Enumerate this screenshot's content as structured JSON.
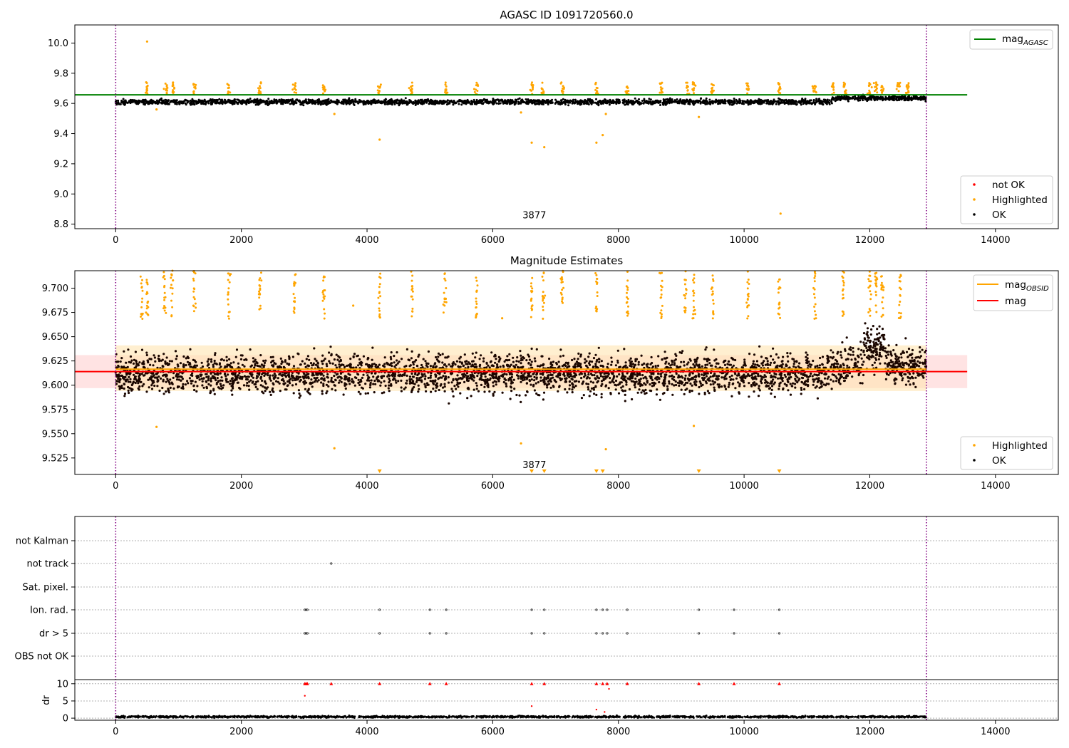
{
  "chart_data": [
    {
      "type": "scatter",
      "title": "AGASC ID 1091720560.0",
      "xlim": [
        -650,
        15000
      ],
      "ylim": [
        8.77,
        10.12
      ],
      "xticks": [
        0,
        2000,
        4000,
        6000,
        8000,
        10000,
        12000,
        14000
      ],
      "yticks": [
        8.8,
        9.0,
        9.2,
        9.4,
        9.6,
        9.8,
        10.0
      ],
      "ytick_labels": [
        "8.8",
        "9.0",
        "9.2",
        "9.4",
        "9.6",
        "9.8",
        "10.0"
      ],
      "vlines": [
        0,
        12900
      ],
      "annotation": {
        "text": "3877",
        "x": 6300,
        "y": 8.83
      },
      "hline": {
        "name": "mag_AGASC",
        "y": 9.657,
        "x_range": [
          -650,
          13550
        ],
        "color": "#008000"
      },
      "legend_line": {
        "label": "mag",
        "sub": "AGASC"
      },
      "legend_markers": [
        {
          "label": "not OK",
          "color": "#ff0000"
        },
        {
          "label": "Highlighted",
          "color": "#ffa500"
        },
        {
          "label": "OK",
          "color": "#000000"
        }
      ],
      "series": [
        {
          "name": "OK",
          "color": "#000000",
          "base": 9.61,
          "spread": 0.012,
          "x_range": [
            0,
            12900
          ]
        },
        {
          "name": "Highlighted",
          "color": "#ffa500",
          "cluster_x": [
            500,
            800,
            920,
            1250,
            1800,
            2290,
            2850,
            3310,
            4200,
            4700,
            5250,
            5740,
            6620,
            6800,
            7110,
            7650,
            8140,
            8680,
            9100,
            9200,
            9500,
            10060,
            10560,
            11120,
            11420,
            11600,
            12000,
            12100,
            12200,
            12450,
            12600
          ],
          "cluster_y": 9.7,
          "outliers": [
            [
              500,
              10.01
            ],
            [
              4200,
              9.36
            ],
            [
              6620,
              9.34
            ],
            [
              6820,
              9.31
            ],
            [
              7650,
              9.34
            ],
            [
              7750,
              9.39
            ],
            [
              3480,
              9.53
            ],
            [
              6450,
              9.54
            ],
            [
              9280,
              9.51
            ],
            [
              10580,
              8.87
            ],
            [
              7800,
              9.53
            ],
            [
              650,
              9.56
            ]
          ]
        }
      ]
    },
    {
      "type": "scatter",
      "title": "Magnitude Estimates",
      "xlim": [
        -650,
        15000
      ],
      "ylim": [
        9.508,
        9.718
      ],
      "xticks": [
        0,
        2000,
        4000,
        6000,
        8000,
        10000,
        12000,
        14000
      ],
      "yticks": [
        9.525,
        9.55,
        9.575,
        9.6,
        9.625,
        9.65,
        9.675,
        9.7
      ],
      "ytick_labels": [
        "9.525",
        "9.550",
        "9.575",
        "9.600",
        "9.625",
        "9.650",
        "9.675",
        "9.700"
      ],
      "vlines": [
        0,
        12900
      ],
      "annotation": {
        "text": "3877",
        "x": 6300,
        "y": 9.513
      },
      "mag_line": {
        "y": 9.614,
        "band": [
          9.597,
          9.631
        ],
        "x_range": [
          -650,
          13550
        ],
        "color": "#ff0000"
      },
      "obsid_line": {
        "y": 9.6165,
        "band": [
          9.594,
          9.641
        ],
        "x_range": [
          0,
          12900
        ],
        "color": "#ffa500"
      },
      "legend_lines": [
        {
          "label": "mag",
          "sub": "OBSID",
          "color": "#ffa500"
        },
        {
          "label": "mag",
          "sub": "",
          "color": "#ff0000"
        }
      ],
      "legend_markers": [
        {
          "label": "Highlighted",
          "color": "#ffa500"
        },
        {
          "label": "OK",
          "color": "#000000"
        }
      ],
      "series": [
        {
          "name": "OK",
          "color": "#000000",
          "base": 9.612,
          "spread": 0.014,
          "x_range": [
            0,
            12900
          ]
        },
        {
          "name": "Highlighted",
          "color": "#ffa500",
          "cluster_x": [
            420,
            500,
            780,
            900,
            1250,
            1800,
            2300,
            2850,
            3310,
            4200,
            4720,
            5240,
            5740,
            6620,
            6800,
            7100,
            7650,
            8140,
            8680,
            9070,
            9200,
            9500,
            10060,
            10560,
            11120,
            11580,
            12000,
            12100,
            12200,
            12480
          ],
          "cluster_top": 9.718,
          "low_markers": [
            4200,
            6620,
            6820,
            7650,
            7750,
            9280,
            10560
          ],
          "outliers": [
            [
              650,
              9.557
            ],
            [
              3480,
              9.535
            ],
            [
              6450,
              9.54
            ],
            [
              7800,
              9.534
            ],
            [
              9200,
              9.558
            ],
            [
              3780,
              9.682
            ],
            [
              6150,
              9.669
            ]
          ]
        }
      ]
    },
    {
      "type": "scatter",
      "xlim": [
        -650,
        15000
      ],
      "xticks": [
        0,
        2000,
        4000,
        6000,
        8000,
        10000,
        12000,
        14000
      ],
      "vlines": [
        0,
        12900
      ],
      "flag_labels": [
        "not Kalman",
        "not track",
        "Sat. pixel.",
        "Ion. rad.",
        "dr > 5",
        "OBS not OK"
      ],
      "flags": {
        "not track": [
          3430
        ],
        "Ion. rad.": [
          3010,
          3030,
          3050,
          4200,
          5000,
          5260,
          6620,
          6820,
          7650,
          7750,
          7820,
          8140,
          9280,
          9840,
          10560
        ],
        "dr > 5": [
          3010,
          3030,
          3050,
          4200,
          5000,
          5260,
          6620,
          6820,
          7650,
          7750,
          7820,
          8140,
          9280,
          9840,
          10560
        ]
      },
      "dr": {
        "ylabel": "dr",
        "ylim": [
          -0.6,
          11.2
        ],
        "yticks": [
          0,
          5,
          10
        ],
        "ytick_labels": [
          "0",
          "5",
          "10"
        ],
        "base": 0.4,
        "clipped_at_10": [
          3010,
          3030,
          3050,
          3430,
          4200,
          5000,
          5260,
          6620,
          6820,
          7650,
          7750,
          7820,
          8140,
          9280,
          9840,
          10560
        ],
        "outliers": [
          [
            3010,
            6.5
          ],
          [
            6620,
            3.5
          ],
          [
            7650,
            2.5
          ],
          [
            7780,
            1.8
          ],
          [
            7850,
            8.5
          ]
        ]
      }
    }
  ]
}
